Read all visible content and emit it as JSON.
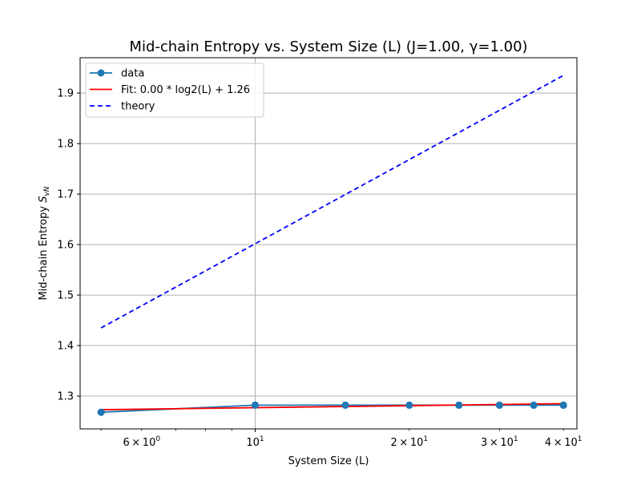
{
  "chart_data": {
    "type": "line",
    "title": "Mid-chain Entropy vs. System Size (L) (J=1.00, γ=1.00)",
    "xlabel": "System Size (L)",
    "ylabel": "Mid-chain Entropy S_vN",
    "x_scale": "log",
    "xlim": [
      4.55,
      42.5
    ],
    "ylim": [
      1.235,
      1.97
    ],
    "grid": "major only",
    "legend_position": "upper-left",
    "xticks": [
      {
        "value": 6,
        "label": "6 × 10^0"
      },
      {
        "value": 10,
        "label": "10^1"
      },
      {
        "value": 20,
        "label": "2 × 10^1"
      },
      {
        "value": 30,
        "label": "3 × 10^1"
      },
      {
        "value": 40,
        "label": "4 × 10^1"
      }
    ],
    "yticks": [
      1.3,
      1.4,
      1.5,
      1.6,
      1.7,
      1.8,
      1.9
    ],
    "series": [
      {
        "name": "data",
        "color": "#1f77b4",
        "style": "line-with-markers",
        "x": [
          5,
          10,
          15,
          20,
          25,
          30,
          35,
          40
        ],
        "y": [
          1.268,
          1.282,
          1.282,
          1.282,
          1.282,
          1.282,
          1.282,
          1.282
        ]
      },
      {
        "name": "Fit: 0.00 * log2(L) + 1.26",
        "color": "#ff0000",
        "style": "solid",
        "x": [
          5,
          40
        ],
        "y": [
          1.273,
          1.285
        ]
      },
      {
        "name": "theory",
        "color": "#0000ff",
        "style": "dashed",
        "x": [
          5,
          40
        ],
        "y": [
          1.435,
          1.935
        ]
      }
    ]
  }
}
